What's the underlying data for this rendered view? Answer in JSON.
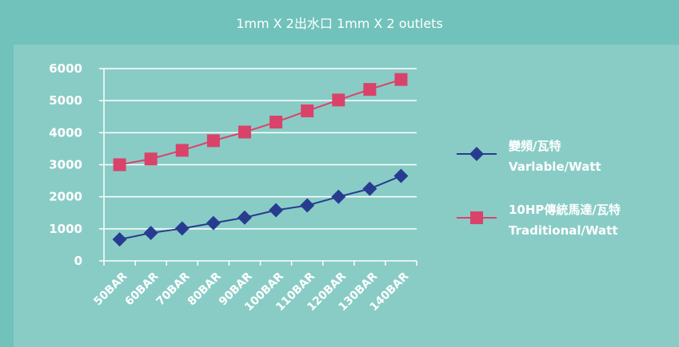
{
  "chart_data": {
    "type": "line",
    "title": "1mm X 2出水口 1mm X 2 outlets",
    "xlabel": "",
    "ylabel": "",
    "categories": [
      "50BAR",
      "60BAR",
      "70BAR",
      "80BAR",
      "90BAR",
      "100BAR",
      "110BAR",
      "120BAR",
      "130BAR",
      "140BAR"
    ],
    "ylim": [
      0,
      6000
    ],
    "yticks": [
      0,
      1000,
      2000,
      3000,
      4000,
      5000,
      6000
    ],
    "grid": true,
    "legend_position": "right",
    "series": [
      {
        "name_lines": [
          "變頻/瓦特",
          "Varlable/Watt"
        ],
        "values": [
          670,
          870,
          1010,
          1180,
          1350,
          1580,
          1730,
          2000,
          2250,
          2650
        ],
        "color": "#283c8f",
        "marker": "diamond"
      },
      {
        "name_lines": [
          "10HP傳統馬達/瓦特",
          "Traditional/Watt"
        ],
        "values": [
          3000,
          3180,
          3450,
          3750,
          4020,
          4330,
          4680,
          5020,
          5350,
          5660
        ],
        "color": "#d9436a",
        "marker": "square"
      }
    ],
    "background_color": "#71c2bb",
    "plot_background_color": "#89ccc6"
  }
}
